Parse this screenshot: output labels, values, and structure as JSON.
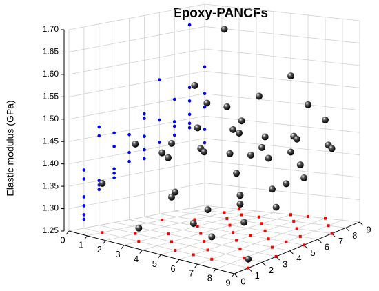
{
  "chart_data": {
    "type": "scatter3d",
    "title": "Epoxy-PANCFs",
    "zlabel": "Elastic modulus (GPa)",
    "x": [
      1,
      1,
      2,
      2,
      2,
      3,
      3,
      3,
      3,
      4,
      4,
      4,
      4,
      5,
      5,
      5,
      5,
      5,
      6,
      6,
      6,
      6,
      6,
      7,
      7,
      7,
      7,
      7,
      8,
      8,
      8,
      8,
      9,
      9,
      9,
      2,
      4,
      6,
      8,
      3,
      5,
      7,
      9,
      1,
      6
    ],
    "y": [
      1,
      5,
      2,
      6,
      8,
      1,
      3,
      5,
      7,
      2,
      4,
      6,
      8,
      1,
      3,
      5,
      7,
      9,
      2,
      4,
      6,
      8,
      9,
      1,
      3,
      5,
      7,
      9,
      2,
      4,
      6,
      8,
      3,
      5,
      7,
      9,
      2,
      1,
      5,
      8,
      9,
      3,
      1,
      8,
      5
    ],
    "z": [
      1.36,
      1.4,
      1.45,
      1.55,
      1.66,
      1.28,
      1.42,
      1.47,
      1.5,
      1.35,
      1.44,
      1.41,
      1.52,
      1.38,
      1.45,
      1.48,
      1.42,
      1.56,
      1.34,
      1.4,
      1.46,
      1.44,
      1.5,
      1.3,
      1.37,
      1.43,
      1.45,
      1.47,
      1.33,
      1.38,
      1.41,
      1.43,
      1.36,
      1.4,
      1.44,
      1.42,
      1.47,
      1.32,
      1.38,
      1.46,
      1.39,
      1.35,
      1.27,
      1.49,
      1.43
    ],
    "sphere_color": "#000000",
    "wall_color": "#0000ff",
    "floor_color": "#ff0000",
    "xlim": [
      0,
      9
    ],
    "xticks": [
      0,
      1,
      2,
      3,
      4,
      5,
      6,
      7,
      8,
      9
    ],
    "ylim": [
      0,
      9
    ],
    "yticks": [
      0,
      1,
      2,
      3,
      4,
      5,
      6,
      7,
      8,
      9
    ],
    "zlim": [
      1.25,
      1.7
    ],
    "zticks": [
      1.25,
      {
        "value": 1.3,
        "label": "1.30"
      },
      1.35,
      {
        "value": 1.4,
        "label": "1.40"
      },
      1.45,
      {
        "value": 1.5,
        "label": "1.50"
      },
      1.55,
      {
        "value": 1.6,
        "label": "1.60"
      },
      1.65,
      {
        "value": 1.7,
        "label": "1.70"
      }
    ],
    "grid": true
  }
}
